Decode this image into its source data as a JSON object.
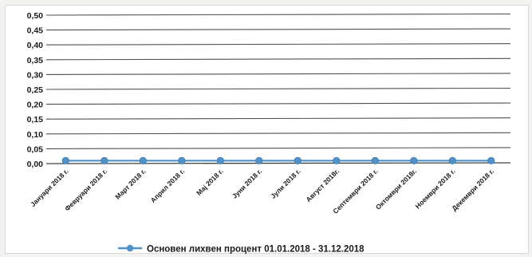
{
  "chart_data": {
    "type": "line",
    "categories": [
      "Јануари 2018 г.",
      "Февруари 2018 г.",
      "Март 2018 г.",
      "Април 2018 г.",
      "Мај 2018 г.",
      "Јуни 2018 г.",
      "Јули 2018 г.",
      "Август 2018г.",
      "Септември 2018 г.",
      "Октомври 2018г.",
      "Ноември 2018 г.",
      "Декември 2018 г."
    ],
    "series": [
      {
        "name": "Основен лихвен процент 01.01.2018 - 31.12.2018",
        "values": [
          0.01,
          0.01,
          0.01,
          0.01,
          0.01,
          0.01,
          0.01,
          0.01,
          0.01,
          0.01,
          0.01,
          0.01
        ]
      }
    ],
    "y_ticks": [
      "0,00",
      "0,05",
      "0,10",
      "0,15",
      "0,20",
      "0,25",
      "0,30",
      "0,35",
      "0,40",
      "0,45",
      "0,50"
    ],
    "ylim": [
      0,
      0.5
    ],
    "grid": true,
    "legend_position": "bottom",
    "colors": {
      "series": "#4f91c9",
      "grid": "#333333",
      "axis_text": "#1a1a1a"
    }
  }
}
